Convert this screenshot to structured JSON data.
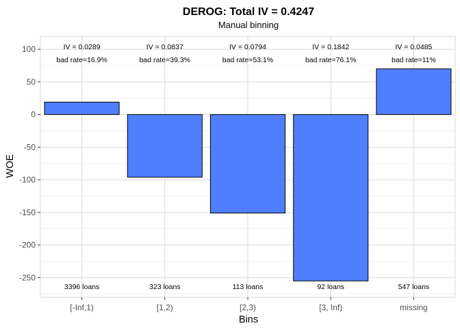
{
  "chart_data": {
    "type": "bar",
    "title": "DEROG: Total IV = 0.4247",
    "subtitle": "Manual binning",
    "xlabel": "Bins",
    "ylabel": "WOE",
    "categories": [
      "[-Inf,1)",
      "[1,2)",
      "[2,3)",
      "[3, Inf)",
      "missing"
    ],
    "values": [
      19,
      -96,
      -151,
      -255,
      70
    ],
    "iv_labels": [
      "IV = 0.0289",
      "IV = 0.0837",
      "IV = 0.0794",
      "IV = 0.1842",
      "IV = 0.0485"
    ],
    "bad_rate_labels": [
      "bad rate=16.9%",
      "bad rate=39.3%",
      "bad rate=53.1%",
      "bad rate=76.1%",
      "bad rate=11%"
    ],
    "count_labels": [
      "3396 loans",
      "323 loans",
      "113 loans",
      "92 loans",
      "547 loans"
    ],
    "yticks": [
      100,
      50,
      0,
      -50,
      -100,
      -150,
      -200,
      -250
    ],
    "ylim": [
      -280,
      120
    ],
    "grid": true,
    "bar_color": "#4f7fff",
    "bar_outline": "#000000"
  }
}
